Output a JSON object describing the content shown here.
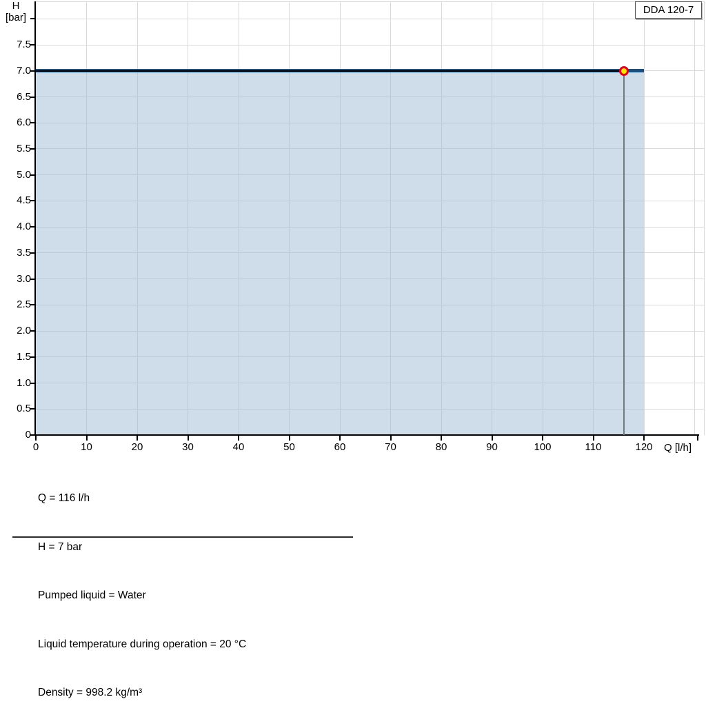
{
  "header": {
    "model_label": "DDA 120-7"
  },
  "axes": {
    "y_title": "H",
    "y_unit": "[bar]",
    "x_unit_label": "Q [l/h]"
  },
  "chart_data": {
    "type": "line",
    "title": "DDA 120-7",
    "xlabel": "Q [l/h]",
    "ylabel": "H [bar]",
    "xlim": [
      0,
      132
    ],
    "ylim": [
      0,
      8.35
    ],
    "grid": true,
    "x_tick_values": [
      0,
      10,
      20,
      30,
      40,
      50,
      60,
      70,
      80,
      90,
      100,
      110,
      120
    ],
    "x_grid_extra": [
      130
    ],
    "y_tick_values": [
      0,
      0.5,
      1,
      1.5,
      2,
      2.5,
      3,
      3.5,
      4,
      4.5,
      5,
      5.5,
      6,
      6.5,
      7,
      7.5,
      8
    ],
    "y_label_max": 7.5,
    "series": [
      {
        "name": "pump-curve",
        "color": "#1d4f7c",
        "points": [
          [
            0,
            7
          ],
          [
            120,
            7
          ]
        ],
        "fill_below_color": "rgba(160,186,212,0.5)"
      }
    ],
    "operating_point": {
      "q": 116,
      "h": 7,
      "marker_fill": "#ffe400",
      "marker_ring": "#e3001c",
      "h_indicator_color": "#000000",
      "q_indicator_color": "#70797f"
    }
  },
  "info_lines": [
    "Q = 116 l/h",
    "H = 7 bar",
    "Pumped liquid = Water",
    "Liquid temperature during operation = 20 °C",
    "Density = 998.2 kg/m³"
  ]
}
